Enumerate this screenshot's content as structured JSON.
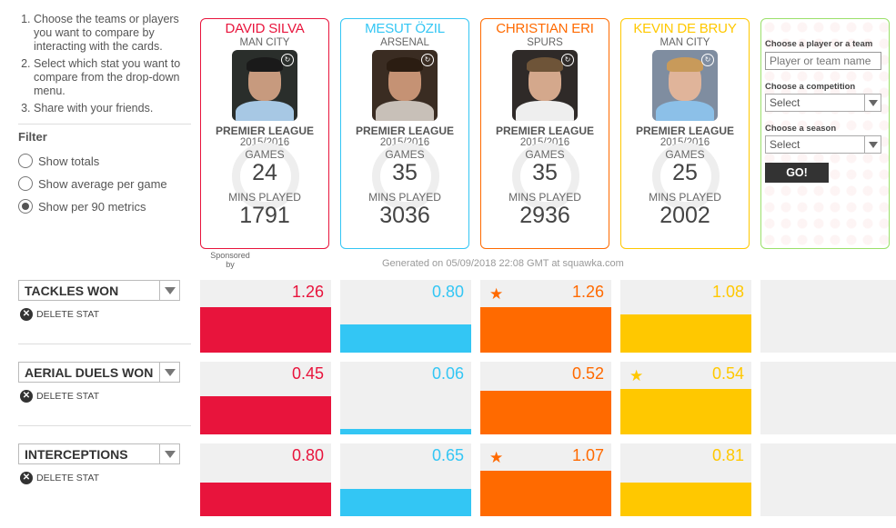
{
  "instructions": [
    "Choose the teams or players you want to compare by interacting with the cards.",
    "Select which stat you want to compare from the drop-down menu.",
    "Share with your friends."
  ],
  "filter": {
    "title": "Filter",
    "options": [
      {
        "label": "Show totals",
        "checked": false
      },
      {
        "label": "Show average per game",
        "checked": false
      },
      {
        "label": "Show per 90 metrics",
        "checked": true
      }
    ]
  },
  "cards": [
    {
      "name": "DAVID SILVA",
      "team": "MAN CITY",
      "league": "PREMIER LEAGUE",
      "season": "2015/2016",
      "games_label": "GAMES",
      "games": "24",
      "mins_label": "MINS PLAYED",
      "mins": "1791",
      "color": "#e8143c"
    },
    {
      "name": "MESUT ÖZIL",
      "team": "ARSENAL",
      "league": "PREMIER LEAGUE",
      "season": "2015/2016",
      "games_label": "GAMES",
      "games": "35",
      "mins_label": "MINS PLAYED",
      "mins": "3036",
      "color": "#33c6f4"
    },
    {
      "name": "CHRISTIAN ERI",
      "team": "SPURS",
      "league": "PREMIER LEAGUE",
      "season": "2015/2016",
      "games_label": "GAMES",
      "games": "35",
      "mins_label": "MINS PLAYED",
      "mins": "2936",
      "color": "#ff6a00"
    },
    {
      "name": "KEVIN DE BRUY",
      "team": "MAN CITY",
      "league": "PREMIER LEAGUE",
      "season": "2015/2016",
      "games_label": "GAMES",
      "games": "25",
      "mins_label": "MINS PLAYED",
      "mins": "2002",
      "color": "#ffc800"
    }
  ],
  "search": {
    "player_label": "Choose a player or a team",
    "player_placeholder": "Player or team name",
    "competition_label": "Choose a competition",
    "competition_value": "Select",
    "season_label": "Choose a season",
    "season_value": "Select",
    "go_label": "GO!"
  },
  "sponsor": "Sponsored by",
  "generated": "Generated on 05/09/2018 22:08 GMT at squawka.com",
  "delete_label": "DELETE STAT",
  "stats": [
    {
      "name": "TACKLES WON",
      "values": [
        "1.26",
        "0.80",
        "1.26",
        "1.08"
      ],
      "fill": [
        0.62,
        0.39,
        0.62,
        0.53
      ],
      "star": [
        false,
        false,
        true,
        false
      ]
    },
    {
      "name": "AERIAL DUELS WON",
      "values": [
        "0.45",
        "0.06",
        "0.52",
        "0.54"
      ],
      "fill": [
        0.52,
        0.07,
        0.6,
        0.62
      ],
      "star": [
        false,
        false,
        false,
        true
      ]
    },
    {
      "name": "INTERCEPTIONS",
      "values": [
        "0.80",
        "0.65",
        "1.07",
        "0.81"
      ],
      "fill": [
        0.46,
        0.37,
        0.62,
        0.46
      ],
      "star": [
        false,
        false,
        true,
        false
      ]
    }
  ]
}
